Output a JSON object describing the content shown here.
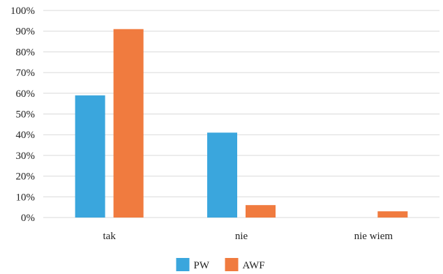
{
  "chart_data": {
    "type": "bar",
    "categories": [
      "tak",
      "nie",
      "nie wiem"
    ],
    "series": [
      {
        "name": "PW",
        "values": [
          59,
          41,
          0
        ],
        "color": "#3aa6dd"
      },
      {
        "name": "AWF",
        "values": [
          91,
          6,
          3
        ],
        "color": "#f07b3f"
      }
    ],
    "ylim": [
      0,
      100
    ],
    "y_ticks": [
      "0%",
      "10%",
      "20%",
      "30%",
      "40%",
      "50%",
      "60%",
      "70%",
      "80%",
      "90%",
      "100%"
    ],
    "grid": true,
    "legend_position": "bottom"
  }
}
